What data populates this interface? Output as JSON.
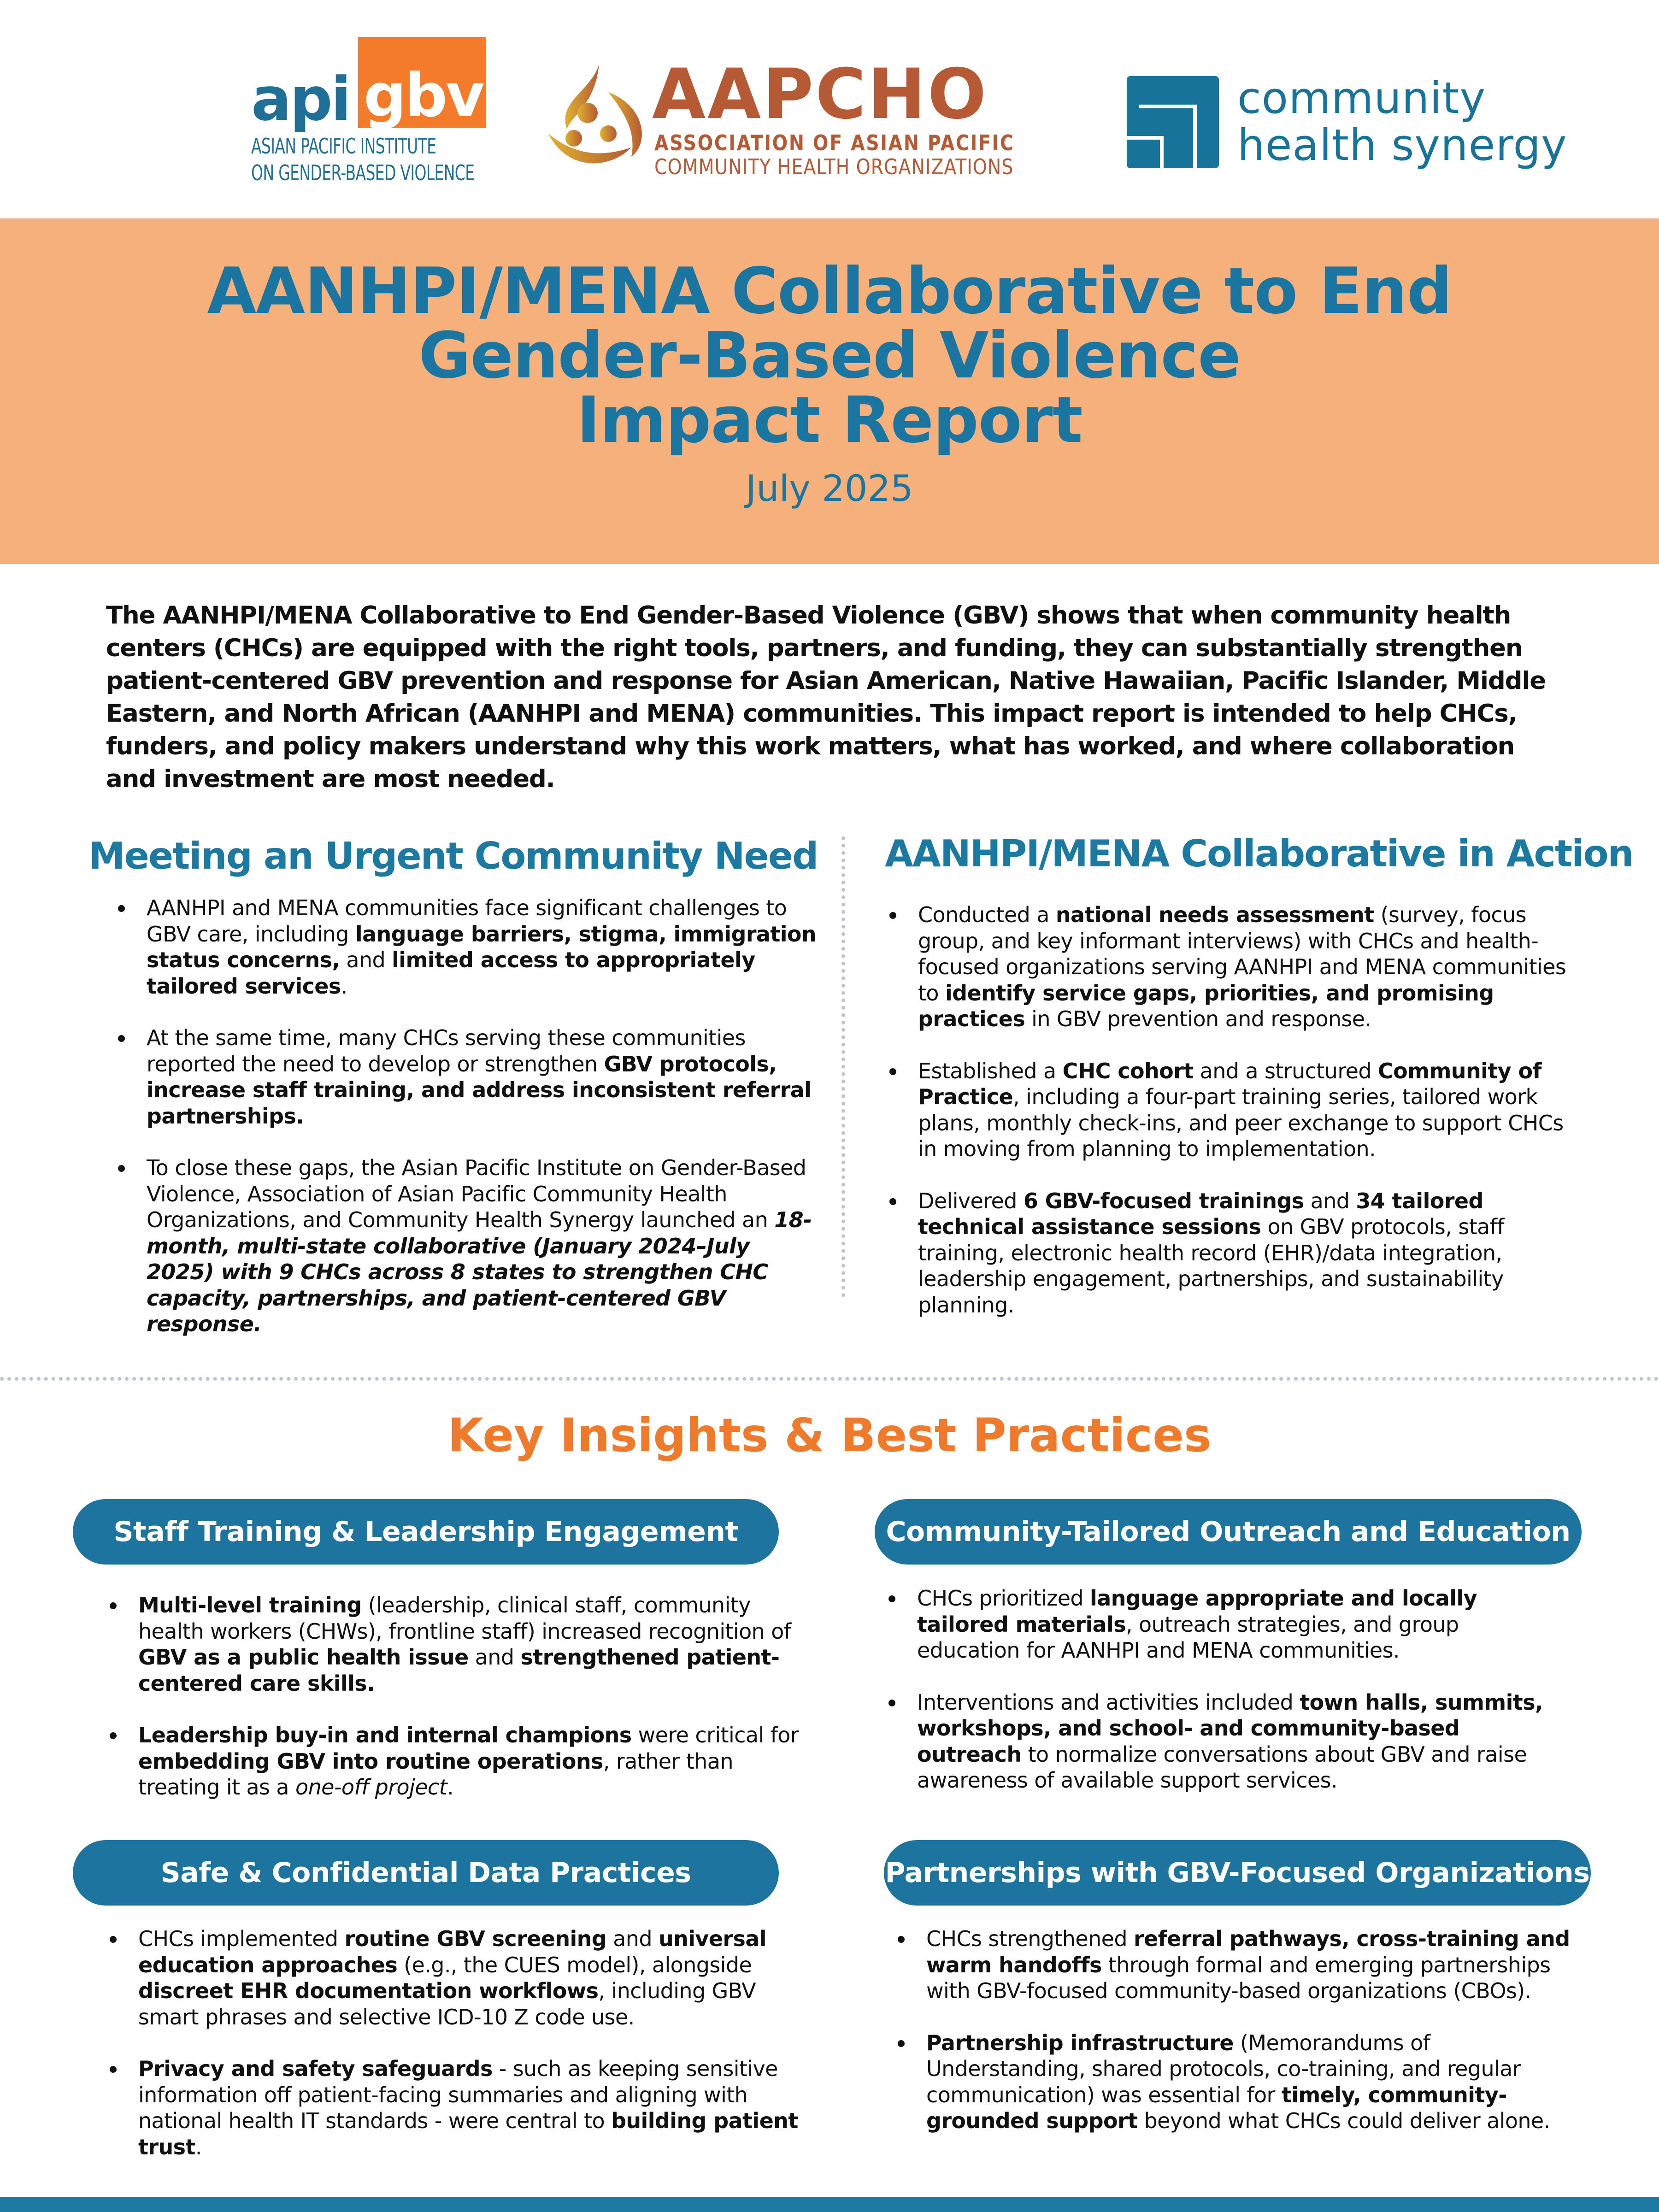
{
  "logos": {
    "apigbv": {
      "api": "api",
      "gbv": "gbv",
      "line1": "ASIAN PACIFIC INSTITUTE",
      "line2": "ON GENDER-BASED VIOLENCE"
    },
    "aapcho": {
      "name": "AAPCHO",
      "line1": "ASSOCIATION OF ASIAN PACIFIC",
      "line2": "COMMUNITY HEALTH ORGANIZATIONS"
    },
    "chs": {
      "line1": "community",
      "line2": "health synergy"
    }
  },
  "banner": {
    "title_lines": [
      "AANHPI/MENA Collaborative to End",
      "Gender-Based Violence",
      "Impact Report"
    ],
    "date": "July 2025",
    "bg_color": "#f5b07c",
    "title_color": "#1a75a0"
  },
  "intro": "The AANHPI/MENA Collaborative to End Gender-Based Violence (GBV) shows that when community health centers (CHCs) are equipped with the right tools, partners, and funding, they can substantially strengthen patient-centered GBV prevention and response for Asian American, Native Hawaiian, Pacific Islander, Middle Eastern, and North African (AANHPI and MENA) communities. This impact report is intended to help CHCs, funders, and policy makers understand why this work matters, what has worked, and where collaboration and investment are most needed.",
  "sections": {
    "need": {
      "heading": "Meeting an Urgent Community Need",
      "bullets": [
        [
          {
            "t": "AANHPI and MENA communities face significant challenges to GBV care, including "
          },
          {
            "t": "language barriers, stigma, immigration status concerns,",
            "s": "b"
          },
          {
            "t": " and "
          },
          {
            "t": "limited access to appropriately tailored services",
            "s": "b"
          },
          {
            "t": "."
          }
        ],
        [
          {
            "t": "At the same time, many CHCs serving these communities reported the need to develop or strengthen "
          },
          {
            "t": "GBV protocols, increase staff training, and address inconsistent referral partnerships.",
            "s": "b"
          }
        ],
        [
          {
            "t": "To close these gaps, the Asian Pacific Institute on Gender-Based Violence, Association of Asian Pacific Community Health Organizations, and Community Health Synergy launched an "
          },
          {
            "t": "18-month, multi-state collaborative (January 2024–July 2025) with 9 CHCs across 8 states to strengthen CHC capacity, partnerships, and patient-centered GBV response.",
            "s": "bi"
          }
        ]
      ]
    },
    "action": {
      "heading": "AANHPI/MENA Collaborative in Action",
      "bullets": [
        [
          {
            "t": "Conducted a "
          },
          {
            "t": "national needs assessment",
            "s": "b"
          },
          {
            "t": " (survey, focus group, and key informant interviews) with CHCs and health-focused organizations serving AANHPI and MENA communities to "
          },
          {
            "t": "identify service gaps, priorities, and promising practices",
            "s": "b"
          },
          {
            "t": " in GBV prevention and response."
          }
        ],
        [
          {
            "t": "Established a "
          },
          {
            "t": "CHC cohort",
            "s": "b"
          },
          {
            "t": " and a structured "
          },
          {
            "t": "Community of Practice",
            "s": "b"
          },
          {
            "t": ", including a four-part training series, tailored work plans, monthly check-ins, and peer exchange to support CHCs in moving from planning to implementation."
          }
        ],
        [
          {
            "t": "Delivered "
          },
          {
            "t": "6 GBV-focused trainings",
            "s": "b"
          },
          {
            "t": " and "
          },
          {
            "t": "34 tailored technical assistance sessions",
            "s": "b"
          },
          {
            "t": " on GBV protocols, staff training, electronic health record (EHR)/data integration, leadership engagement, partnerships, and sustainability planning."
          }
        ]
      ]
    },
    "key_insights_heading": "Key Insights & Best Practices",
    "staff": {
      "heading": "Staff Training & Leadership Engagement",
      "bullets": [
        [
          {
            "t": "Multi-level training",
            "s": "b"
          },
          {
            "t": " (leadership, clinical staff, community health workers (CHWs), frontline staff) increased recognition of "
          },
          {
            "t": "GBV as a public health issue",
            "s": "b"
          },
          {
            "t": " and "
          },
          {
            "t": "strengthened patient-centered care skills.",
            "s": "b"
          }
        ],
        [
          {
            "t": "Leadership buy-in and internal champions",
            "s": "b"
          },
          {
            "t": " were critical for "
          },
          {
            "t": "embedding GBV into routine operations",
            "s": "b"
          },
          {
            "t": ", rather than treating it as a "
          },
          {
            "t": "one-off project",
            "s": "i"
          },
          {
            "t": "."
          }
        ]
      ]
    },
    "outreach": {
      "heading": "Community-Tailored Outreach and Education",
      "bullets": [
        [
          {
            "t": "CHCs prioritized "
          },
          {
            "t": "language appropriate and locally tailored materials",
            "s": "b"
          },
          {
            "t": ", outreach strategies, and group education for AANHPI and MENA communities."
          }
        ],
        [
          {
            "t": "Interventions and activities included "
          },
          {
            "t": "town halls, summits, workshops, and school- and community-based outreach",
            "s": "b"
          },
          {
            "t": " to normalize conversations about GBV and raise awareness of available support services."
          }
        ]
      ]
    },
    "data": {
      "heading": "Safe & Confidential Data Practices",
      "bullets": [
        [
          {
            "t": "CHCs implemented "
          },
          {
            "t": "routine GBV screening",
            "s": "b"
          },
          {
            "t": " and "
          },
          {
            "t": "universal education approaches",
            "s": "b"
          },
          {
            "t": " (e.g., the CUES model), alongside "
          },
          {
            "t": "discreet EHR documentation workflows",
            "s": "b"
          },
          {
            "t": ", including GBV smart phrases and selective ICD-10 Z code use."
          }
        ],
        [
          {
            "t": "Privacy and safety safeguards",
            "s": "b"
          },
          {
            "t": " - such as keeping sensitive information off patient-facing summaries and aligning with national health IT standards - were central to "
          },
          {
            "t": "building patient trust",
            "s": "b"
          },
          {
            "t": "."
          }
        ]
      ]
    },
    "partners": {
      "heading": "Partnerships with GBV-Focused Organizations",
      "bullets": [
        [
          {
            "t": "CHCs strengthened "
          },
          {
            "t": "referral pathways, cross-training and warm handoffs",
            "s": "b"
          },
          {
            "t": " through formal and emerging partnerships with GBV-focused community-based organizations (CBOs)."
          }
        ],
        [
          {
            "t": "Partnership infrastructure",
            "s": "b"
          },
          {
            "t": " (Memorandums of Understanding, shared protocols, co-training, and regular communication) was essential for "
          },
          {
            "t": "timely, community-grounded support",
            "s": "b"
          },
          {
            "t": " beyond what CHCs could deliver alone."
          }
        ]
      ]
    }
  },
  "colors": {
    "accent_blue": "#1d759f",
    "accent_orange": "#f07a2b",
    "aapcho_brown": "#b55a34"
  }
}
